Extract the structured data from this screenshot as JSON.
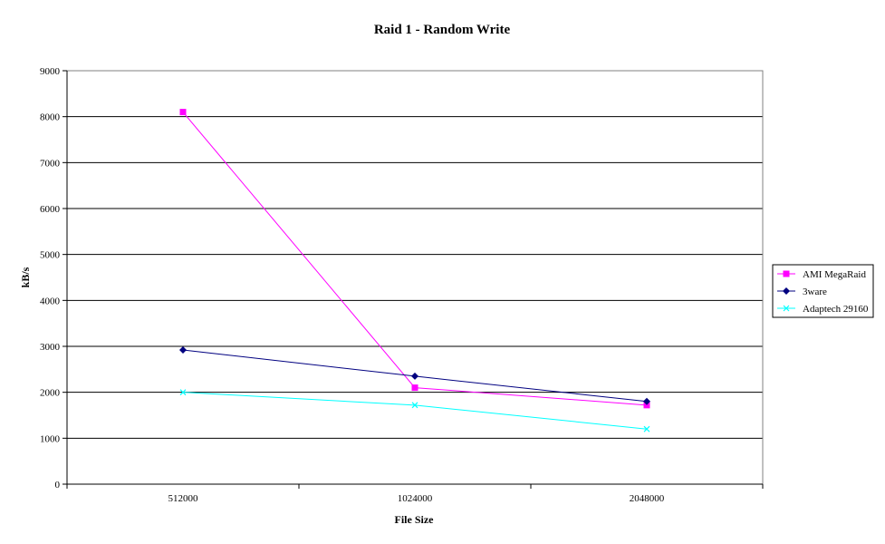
{
  "chart_data": {
    "type": "line",
    "title": "Raid 1 - Random Write",
    "xlabel": "File Size",
    "ylabel": "kB/s",
    "categories": [
      "512000",
      "1024000",
      "2048000"
    ],
    "ylim": [
      0,
      9000
    ],
    "yticks": [
      "0",
      "1000",
      "2000",
      "3000",
      "4000",
      "5000",
      "6000",
      "7000",
      "8000",
      "9000"
    ],
    "grid": true,
    "legend_position": "right",
    "series": [
      {
        "name": "AMI MegaRaid",
        "values": [
          8100,
          2100,
          1720
        ],
        "color": "#ff00ff",
        "marker": "square"
      },
      {
        "name": "3ware",
        "values": [
          2920,
          2350,
          1800
        ],
        "color": "#000080",
        "marker": "diamond"
      },
      {
        "name": "Adaptech 29160",
        "values": [
          2000,
          1720,
          1200
        ],
        "color": "#00ffff",
        "marker": "x"
      }
    ]
  }
}
